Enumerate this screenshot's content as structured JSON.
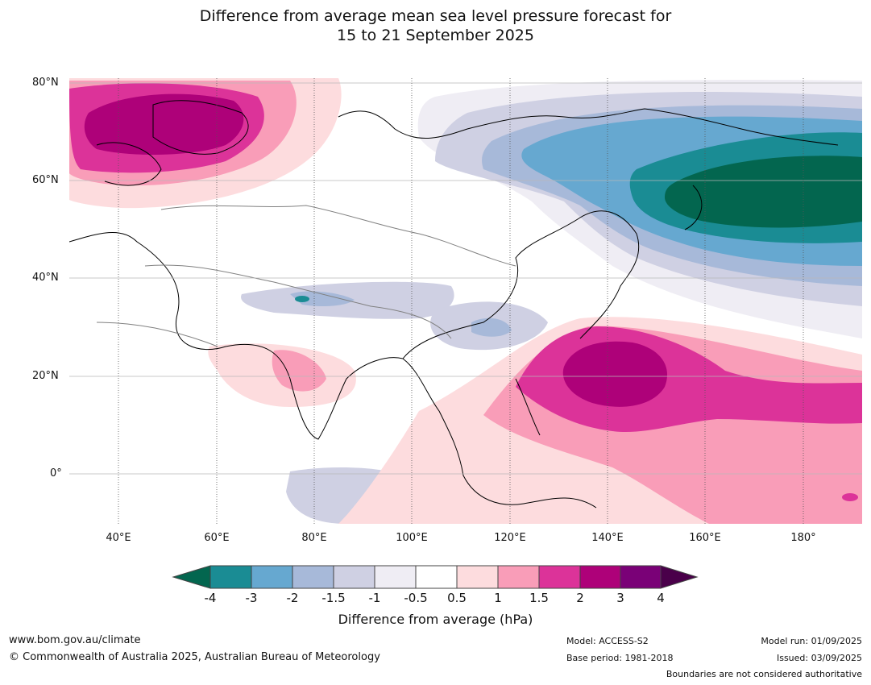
{
  "title": {
    "line1": "Difference from average mean sea level pressure forecast for",
    "line2": "15 to 21 September 2025"
  },
  "axes": {
    "lat_labels": [
      "80°N",
      "60°N",
      "40°N",
      "20°N",
      "0°"
    ],
    "lon_labels": [
      "40°E",
      "60°E",
      "80°E",
      "100°E",
      "120°E",
      "140°E",
      "160°E",
      "180°"
    ]
  },
  "colorbar": {
    "title": "Difference from average (hPa)",
    "ticks": [
      "-4",
      "-3",
      "-2",
      "-1.5",
      "-1",
      "-0.5",
      "0.5",
      "1",
      "1.5",
      "2",
      "3",
      "4"
    ],
    "colors": [
      "#03664f",
      "#1a8c94",
      "#66a8d0",
      "#a7b9d9",
      "#cfd0e3",
      "#efedf4",
      "#ffffff",
      "#fddcde",
      "#f99db8",
      "#dc3399",
      "#ae0179",
      "#7a0177",
      "#4a004a"
    ]
  },
  "footer": {
    "url": "www.bom.gov.au/climate",
    "copyright": "© Commonwealth of Australia 2025, Australian Bureau of Meteorology",
    "model": "Model: ACCESS-S2",
    "base_period": "Base period: 1981-2018",
    "model_run": "Model run: 01/09/2025",
    "issued": "Issued: 03/09/2025",
    "disclaimer": "Boundaries are not considered authoritative"
  }
}
